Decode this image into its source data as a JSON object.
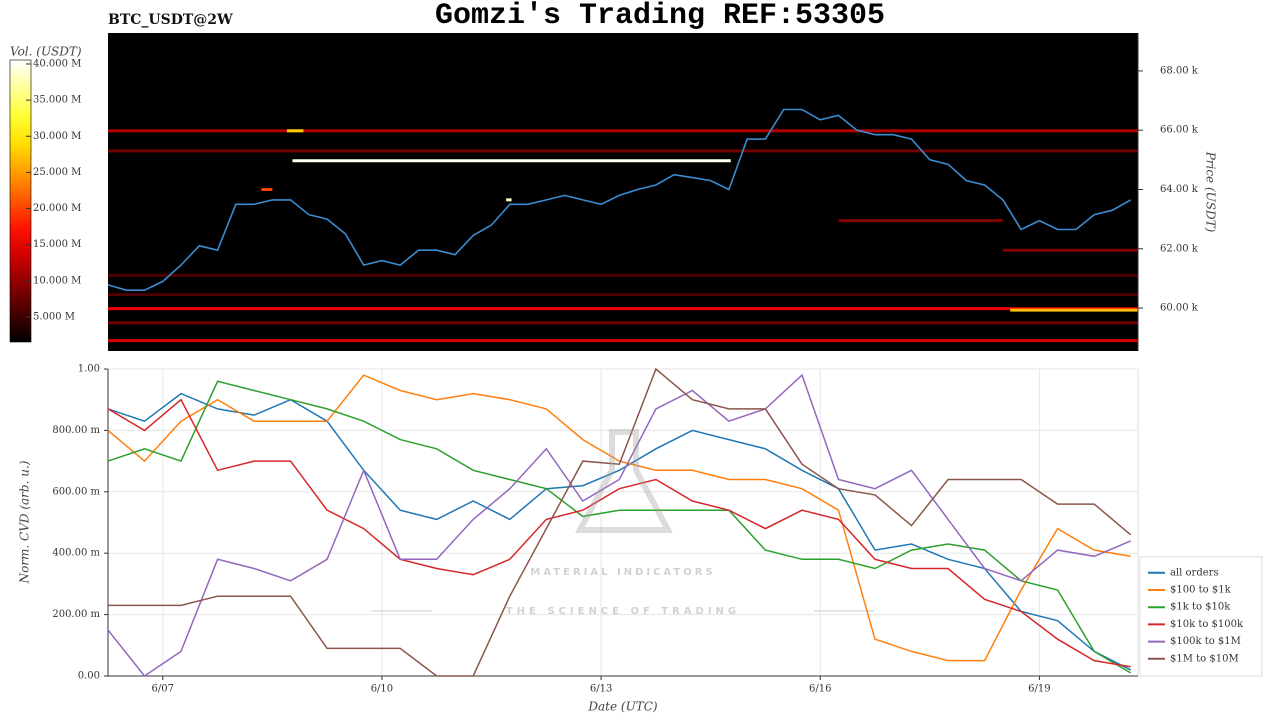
{
  "header": {
    "title": "Gomzi's Trading REF:53305",
    "symbol": "BTC_USDT@2W"
  },
  "watermark": {
    "name": "MATERIAL INDICATORS",
    "tagline": "THE SCIENCE OF TRADING"
  },
  "chart_data": [
    {
      "type": "heatmap",
      "ylabel": "Price (USDT)",
      "xlim": [
        0,
        56.4
      ],
      "ylim": [
        58550,
        69280
      ],
      "yticks": [
        {
          "value": 60000,
          "label": "60.00 k"
        },
        {
          "value": 62000,
          "label": "62.00 k"
        },
        {
          "value": 64000,
          "label": "64.00 k"
        },
        {
          "value": 66000,
          "label": "66.00 k"
        },
        {
          "value": 68000,
          "label": "68.00 k"
        }
      ],
      "colorbar": {
        "label": "Vol. (USDT)",
        "colormap": "hot",
        "clim": [
          1540000,
          40550000
        ],
        "ticks": [
          {
            "value": 5000000,
            "label": "5.000 M"
          },
          {
            "value": 10000000,
            "label": "10.000 M"
          },
          {
            "value": 15000000,
            "label": "15.000 M"
          },
          {
            "value": 20000000,
            "label": "20.000 M"
          },
          {
            "value": 25000000,
            "label": "25.000 M"
          },
          {
            "value": 30000000,
            "label": "30.000 M"
          },
          {
            "value": 35000000,
            "label": "35.000 M"
          },
          {
            "value": 40000000,
            "label": "40.000 M"
          }
        ]
      },
      "bands": [
        {
          "price": 65980,
          "volume": 12000000,
          "start": 0,
          "end": 56.4
        },
        {
          "price": 59980,
          "volume": 15000000,
          "start": 0,
          "end": 56.4
        },
        {
          "price": 58900,
          "volume": 14000000,
          "start": 0,
          "end": 56.4
        },
        {
          "price": 65300,
          "volume": 8000000,
          "start": 0,
          "end": 56.4
        },
        {
          "price": 61100,
          "volume": 6000000,
          "start": 0,
          "end": 56.4
        },
        {
          "price": 60450,
          "volume": 6000000,
          "start": 0,
          "end": 56.4
        },
        {
          "price": 59500,
          "volume": 8000000,
          "start": 0,
          "end": 56.4
        },
        {
          "price": 61950,
          "volume": 9000000,
          "start": 49,
          "end": 56.4
        },
        {
          "price": 62950,
          "volume": 9000000,
          "start": 40,
          "end": 49
        },
        {
          "price": 64000,
          "volume": 20000000,
          "start": 8.4,
          "end": 9.0
        },
        {
          "price": 64970,
          "volume": 40000000,
          "start": 10.1,
          "end": 34.1
        },
        {
          "price": 65980,
          "volume": 28000000,
          "start": 9.8,
          "end": 10.7
        },
        {
          "price": 59930,
          "volume": 27000000,
          "start": 49.4,
          "end": 56.4
        },
        {
          "price": 63650,
          "volume": 38000000,
          "start": 21.8,
          "end": 22.1
        }
      ],
      "line": {
        "color": "#3b8bd0",
        "values": [
          60780,
          60600,
          60600,
          60900,
          61450,
          62100,
          61950,
          63500,
          63500,
          63650,
          63650,
          63150,
          63000,
          62500,
          61450,
          61600,
          61450,
          61950,
          61950,
          61800,
          62450,
          62800,
          63500,
          63500,
          63650,
          63800,
          63650,
          63500,
          63800,
          64000,
          64150,
          64500,
          64400,
          64300,
          64000,
          65700,
          65700,
          66700,
          66700,
          66350,
          66500,
          66000,
          65850,
          65850,
          65700,
          65000,
          64850,
          64300,
          64150,
          63650,
          62650,
          62950,
          62650,
          62650,
          63150,
          63300,
          63650
        ]
      }
    },
    {
      "type": "line",
      "xlabel": "Date (UTC)",
      "ylabel": "Norm. CVD (arb. u.)",
      "xlim": [
        0,
        28.2
      ],
      "xticks": [
        {
          "value": 1.5,
          "label": "6/07"
        },
        {
          "value": 7.5,
          "label": "6/10"
        },
        {
          "value": 13.5,
          "label": "6/13"
        },
        {
          "value": 19.5,
          "label": "6/16"
        },
        {
          "value": 25.5,
          "label": "6/19"
        }
      ],
      "ylim": [
        0,
        1
      ],
      "yticks": [
        {
          "value": 0,
          "label": "0.00"
        },
        {
          "value": 0.2,
          "label": "200.00 m"
        },
        {
          "value": 0.4,
          "label": "400.00 m"
        },
        {
          "value": 0.6,
          "label": "600.00 m"
        },
        {
          "value": 0.8,
          "label": "800.00 m"
        },
        {
          "value": 1,
          "label": "1.00"
        }
      ],
      "grid": true,
      "legend": "lower right",
      "series": [
        {
          "name": "all orders",
          "color": "#1f77b4",
          "values": [
            0.87,
            0.83,
            0.92,
            0.87,
            0.85,
            0.9,
            0.83,
            0.67,
            0.54,
            0.51,
            0.57,
            0.51,
            0.61,
            0.62,
            0.67,
            0.74,
            0.8,
            0.77,
            0.74,
            0.67,
            0.61,
            0.41,
            0.43,
            0.38,
            0.35,
            0.21,
            0.18,
            0.08,
            0.02
          ]
        },
        {
          "name": "$100 to $1k",
          "color": "#ff7f0e",
          "values": [
            0.8,
            0.7,
            0.83,
            0.9,
            0.83,
            0.83,
            0.83,
            0.98,
            0.93,
            0.9,
            0.92,
            0.9,
            0.87,
            0.77,
            0.7,
            0.67,
            0.67,
            0.64,
            0.64,
            0.61,
            0.54,
            0.12,
            0.08,
            0.05,
            0.05,
            0.28,
            0.48,
            0.41,
            0.39
          ]
        },
        {
          "name": "$1k to $10k",
          "color": "#2ca02c",
          "values": [
            0.7,
            0.74,
            0.7,
            0.96,
            0.93,
            0.9,
            0.87,
            0.83,
            0.77,
            0.74,
            0.67,
            0.64,
            0.61,
            0.52,
            0.54,
            0.54,
            0.54,
            0.54,
            0.41,
            0.38,
            0.38,
            0.35,
            0.41,
            0.43,
            0.41,
            0.31,
            0.28,
            0.08,
            0.01
          ]
        },
        {
          "name": "$10k to $100k",
          "color": "#d62728",
          "values": [
            0.87,
            0.8,
            0.9,
            0.67,
            0.7,
            0.7,
            0.54,
            0.48,
            0.38,
            0.35,
            0.33,
            0.38,
            0.51,
            0.54,
            0.61,
            0.64,
            0.57,
            0.54,
            0.48,
            0.54,
            0.51,
            0.38,
            0.35,
            0.35,
            0.25,
            0.21,
            0.12,
            0.05,
            0.03
          ]
        },
        {
          "name": "$100k to $1M",
          "color": "#9467bd",
          "values": [
            0.15,
            0,
            0.08,
            0.38,
            0.35,
            0.31,
            0.38,
            0.67,
            0.38,
            0.38,
            0.51,
            0.61,
            0.74,
            0.57,
            0.64,
            0.87,
            0.93,
            0.83,
            0.87,
            0.98,
            0.64,
            0.61,
            0.67,
            0.51,
            0.35,
            0.31,
            0.41,
            0.39,
            0.44
          ]
        },
        {
          "name": "$1M to $10M",
          "color": "#8c564b",
          "values": [
            0.23,
            0.23,
            0.23,
            0.26,
            0.26,
            0.26,
            0.09,
            0.09,
            0.09,
            0,
            0,
            0.26,
            0.48,
            0.7,
            0.69,
            1,
            0.9,
            0.87,
            0.87,
            0.69,
            0.61,
            0.59,
            0.49,
            0.64,
            0.64,
            0.64,
            0.56,
            0.56,
            0.46
          ]
        }
      ]
    }
  ]
}
